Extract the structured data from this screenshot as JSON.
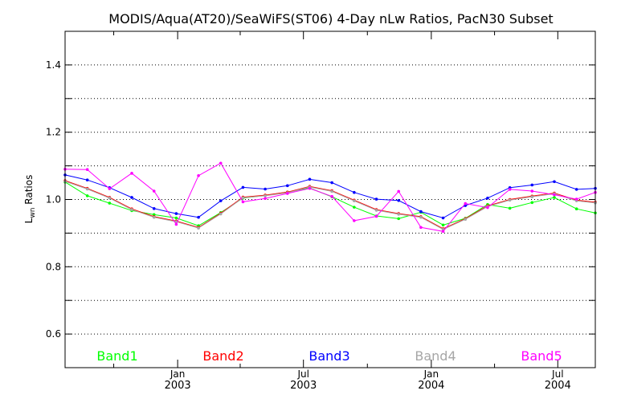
{
  "chart_data": {
    "type": "line",
    "title": "MODIS/Aqua(AT20)/SeaWiFS(ST06) 4-Day nLw Ratios, PacN30 Subset",
    "ylabel_main": "L",
    "ylabel_sub": "wn",
    "ylabel_rest": " Ratios",
    "ylim": [
      0.5,
      1.5
    ],
    "yticks": [
      0.6,
      0.8,
      1.0,
      1.2,
      1.4
    ],
    "ytick_labels": [
      "0.6",
      "0.8",
      "1.0",
      "1.2",
      "1.4"
    ],
    "ygrid": [
      0.6,
      0.7,
      0.8,
      0.9,
      1.0,
      1.1,
      1.2,
      1.3,
      1.4
    ],
    "xlim": [
      "2002-07-23",
      "2004-08-24"
    ],
    "xticks": [
      {
        "date": "2003-01-01",
        "month": "Jan",
        "year": "2003"
      },
      {
        "date": "2003-07-01",
        "month": "Jul",
        "year": "2003"
      },
      {
        "date": "2004-01-01",
        "month": "Jan",
        "year": "2004"
      },
      {
        "date": "2004-07-01",
        "month": "Jul",
        "year": "2004"
      }
    ],
    "xminor": [
      "2002-10-01",
      "2003-04-01",
      "2003-10-01",
      "2004-04-01"
    ],
    "legend_placement": "bottom",
    "grid": true,
    "series": [
      {
        "name": "Band1",
        "color": "#00ff00",
        "x": [
          "2002-07-23",
          "2002-08-24",
          "2002-09-25",
          "2002-10-27",
          "2002-11-28",
          "2002-12-30",
          "2003-01-31",
          "2003-03-04",
          "2003-04-05",
          "2003-05-07",
          "2003-06-08",
          "2003-07-10",
          "2003-08-11",
          "2003-09-12",
          "2003-10-14",
          "2003-11-15",
          "2003-12-17",
          "2004-01-18",
          "2004-02-19",
          "2004-03-22",
          "2004-04-23",
          "2004-05-25",
          "2004-06-26",
          "2004-07-28",
          "2004-08-24"
        ],
        "values": [
          1.052,
          1.011,
          0.989,
          0.967,
          0.955,
          0.945,
          0.922,
          0.961,
          1.004,
          1.012,
          1.022,
          1.034,
          1.008,
          0.977,
          0.951,
          0.943,
          0.962,
          0.924,
          0.944,
          0.985,
          0.974,
          0.991,
          1.006,
          0.972,
          0.96
        ]
      },
      {
        "name": "Band2",
        "color": "#ff0000",
        "x": [
          "2002-07-23",
          "2002-08-24",
          "2002-09-25",
          "2002-10-27",
          "2002-11-28",
          "2002-12-30",
          "2003-01-31",
          "2003-03-04",
          "2003-04-05",
          "2003-05-07",
          "2003-06-08",
          "2003-07-10",
          "2003-08-11",
          "2003-09-12",
          "2003-10-14",
          "2003-11-15",
          "2003-12-17",
          "2004-01-18",
          "2004-02-19",
          "2004-03-22",
          "2004-04-23",
          "2004-05-25",
          "2004-06-26",
          "2004-07-28",
          "2004-08-24"
        ],
        "values": [
          1.056,
          1.033,
          1.006,
          0.972,
          0.949,
          0.936,
          0.917,
          0.959,
          1.007,
          1.013,
          1.022,
          1.039,
          1.026,
          0.998,
          0.97,
          0.958,
          0.949,
          0.913,
          0.943,
          0.981,
          1.0,
          1.01,
          1.019,
          0.998,
          0.992
        ]
      },
      {
        "name": "Band3",
        "color": "#0000ff",
        "x": [
          "2002-07-23",
          "2002-08-24",
          "2002-09-25",
          "2002-10-27",
          "2002-11-28",
          "2002-12-30",
          "2003-01-31",
          "2003-03-04",
          "2003-04-05",
          "2003-05-07",
          "2003-06-08",
          "2003-07-10",
          "2003-08-11",
          "2003-09-12",
          "2003-10-14",
          "2003-11-15",
          "2003-12-17",
          "2004-01-18",
          "2004-02-19",
          "2004-03-22",
          "2004-04-23",
          "2004-05-25",
          "2004-06-26",
          "2004-07-28",
          "2004-08-24"
        ],
        "values": [
          1.073,
          1.058,
          1.035,
          1.006,
          0.973,
          0.958,
          0.947,
          0.996,
          1.036,
          1.031,
          1.041,
          1.06,
          1.05,
          1.021,
          1.001,
          0.997,
          0.964,
          0.945,
          0.982,
          1.004,
          1.035,
          1.043,
          1.053,
          1.03,
          1.033
        ]
      },
      {
        "name": "Band4",
        "color": "#a6a6a6",
        "x": [
          "2002-07-23",
          "2002-08-24",
          "2002-09-25",
          "2002-10-27",
          "2002-11-28",
          "2002-12-30",
          "2003-01-31",
          "2003-03-04",
          "2003-04-05",
          "2003-05-07",
          "2003-06-08",
          "2003-07-10",
          "2003-08-11",
          "2003-09-12",
          "2003-10-14",
          "2003-11-15",
          "2003-12-17",
          "2004-01-18",
          "2004-02-19",
          "2004-03-22",
          "2004-04-23",
          "2004-05-25",
          "2004-06-26",
          "2004-07-28",
          "2004-08-24"
        ],
        "values": [
          1.054,
          1.031,
          1.004,
          0.97,
          0.947,
          0.934,
          0.915,
          0.957,
          1.005,
          1.011,
          1.02,
          1.037,
          1.024,
          0.996,
          0.968,
          0.956,
          0.947,
          0.911,
          0.941,
          0.979,
          0.998,
          1.008,
          1.017,
          0.996,
          0.99
        ]
      },
      {
        "name": "Band5",
        "color": "#ff00ff",
        "x": [
          "2002-07-23",
          "2002-08-24",
          "2002-09-25",
          "2002-10-27",
          "2002-11-28",
          "2002-12-30",
          "2003-01-31",
          "2003-03-04",
          "2003-04-05",
          "2003-05-07",
          "2003-06-08",
          "2003-07-10",
          "2003-08-11",
          "2003-09-12",
          "2003-10-14",
          "2003-11-15",
          "2003-12-17",
          "2004-01-18",
          "2004-02-19",
          "2004-03-22",
          "2004-04-23",
          "2004-05-25",
          "2004-06-26",
          "2004-07-28",
          "2004-08-24"
        ],
        "values": [
          1.09,
          1.089,
          1.032,
          1.078,
          1.025,
          0.926,
          1.071,
          1.108,
          0.993,
          1.003,
          1.018,
          1.033,
          1.009,
          0.937,
          0.95,
          1.024,
          0.917,
          0.905,
          0.988,
          0.976,
          1.03,
          1.025,
          1.014,
          1.001,
          1.021
        ]
      }
    ]
  }
}
